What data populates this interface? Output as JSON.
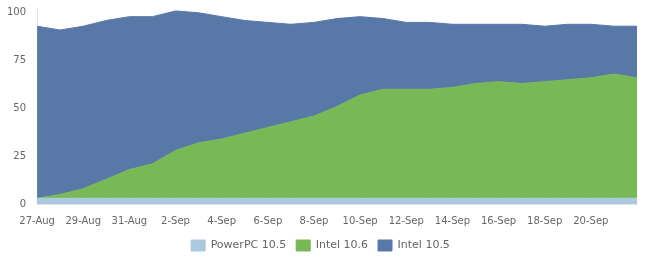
{
  "chart_data": {
    "type": "area",
    "stacked": true,
    "categories": [
      "27-Aug",
      null,
      "29-Aug",
      null,
      "31-Aug",
      null,
      "2-Sep",
      null,
      "4-Sep",
      null,
      "6-Sep",
      null,
      "8-Sep",
      null,
      "10-Sep",
      null,
      "12-Sep",
      null,
      "14-Sep",
      null,
      "16-Sep",
      null,
      "18-Sep",
      null,
      "20-Sep",
      null,
      null
    ],
    "series": [
      {
        "name": "PowerPC 10.5",
        "color": "#aac8e0",
        "values": [
          3,
          3,
          3,
          3,
          3,
          3,
          3,
          3,
          3,
          3,
          3,
          3,
          3,
          3,
          3,
          3,
          3,
          3,
          3,
          3,
          3,
          3,
          3,
          3,
          3,
          3,
          3
        ]
      },
      {
        "name": "Intel 10.6",
        "color": "#78b856",
        "values": [
          0,
          2,
          5,
          10,
          15,
          18,
          25,
          29,
          31,
          34,
          37,
          40,
          43,
          48,
          54,
          57,
          57,
          57,
          58,
          60,
          61,
          60,
          61,
          62,
          63,
          65,
          63
        ]
      },
      {
        "name": "Intel 10.5",
        "color": "#5878a8",
        "values": [
          90,
          86,
          85,
          83,
          80,
          77,
          73,
          68,
          64,
          59,
          55,
          51,
          49,
          46,
          41,
          37,
          35,
          35,
          33,
          31,
          30,
          31,
          29,
          29,
          28,
          25,
          27
        ]
      }
    ],
    "ylim": [
      0,
      102
    ],
    "yticks": [
      0,
      25,
      50,
      75,
      100
    ],
    "grid": false,
    "legend": "bottom"
  }
}
